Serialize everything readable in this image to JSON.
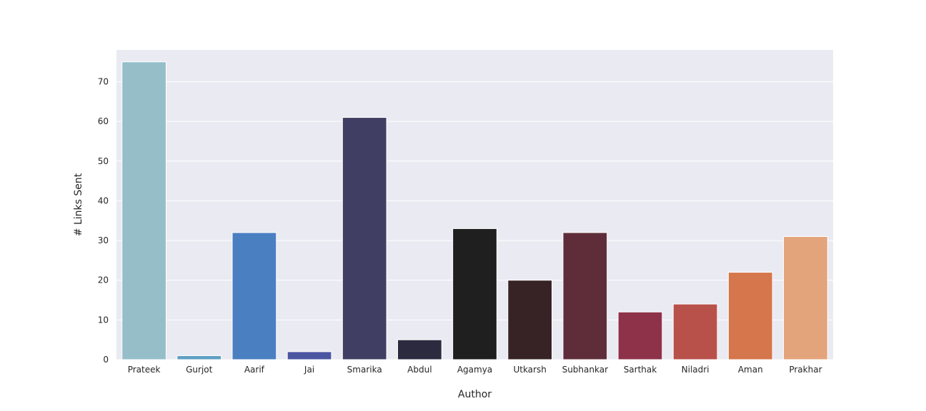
{
  "chart_data": {
    "type": "bar",
    "title": "",
    "xlabel": "Author",
    "ylabel": "# Links Sent",
    "categories": [
      "Prateek",
      "Gurjot",
      "Aarif",
      "Jai",
      "Smarika",
      "Abdul",
      "Agamya",
      "Utkarsh",
      "Subhankar",
      "Sarthak",
      "Niladri",
      "Aman",
      "Prakhar"
    ],
    "values": [
      75,
      1,
      32,
      2,
      61,
      5,
      33,
      20,
      32,
      12,
      14,
      22,
      31
    ],
    "colors": [
      "#95bec8",
      "#5f9fc2",
      "#4a7fc1",
      "#4a55a2",
      "#403e62",
      "#2b2a3f",
      "#1f1f20",
      "#372326",
      "#5f2d3a",
      "#8e3249",
      "#b9514b",
      "#d5764c",
      "#e4a47b"
    ],
    "ylim": [
      0,
      78
    ],
    "yticks": [
      0,
      10,
      20,
      30,
      40,
      50,
      60,
      70
    ],
    "grid": true,
    "background": "#eaeaf2",
    "legend": "none"
  }
}
